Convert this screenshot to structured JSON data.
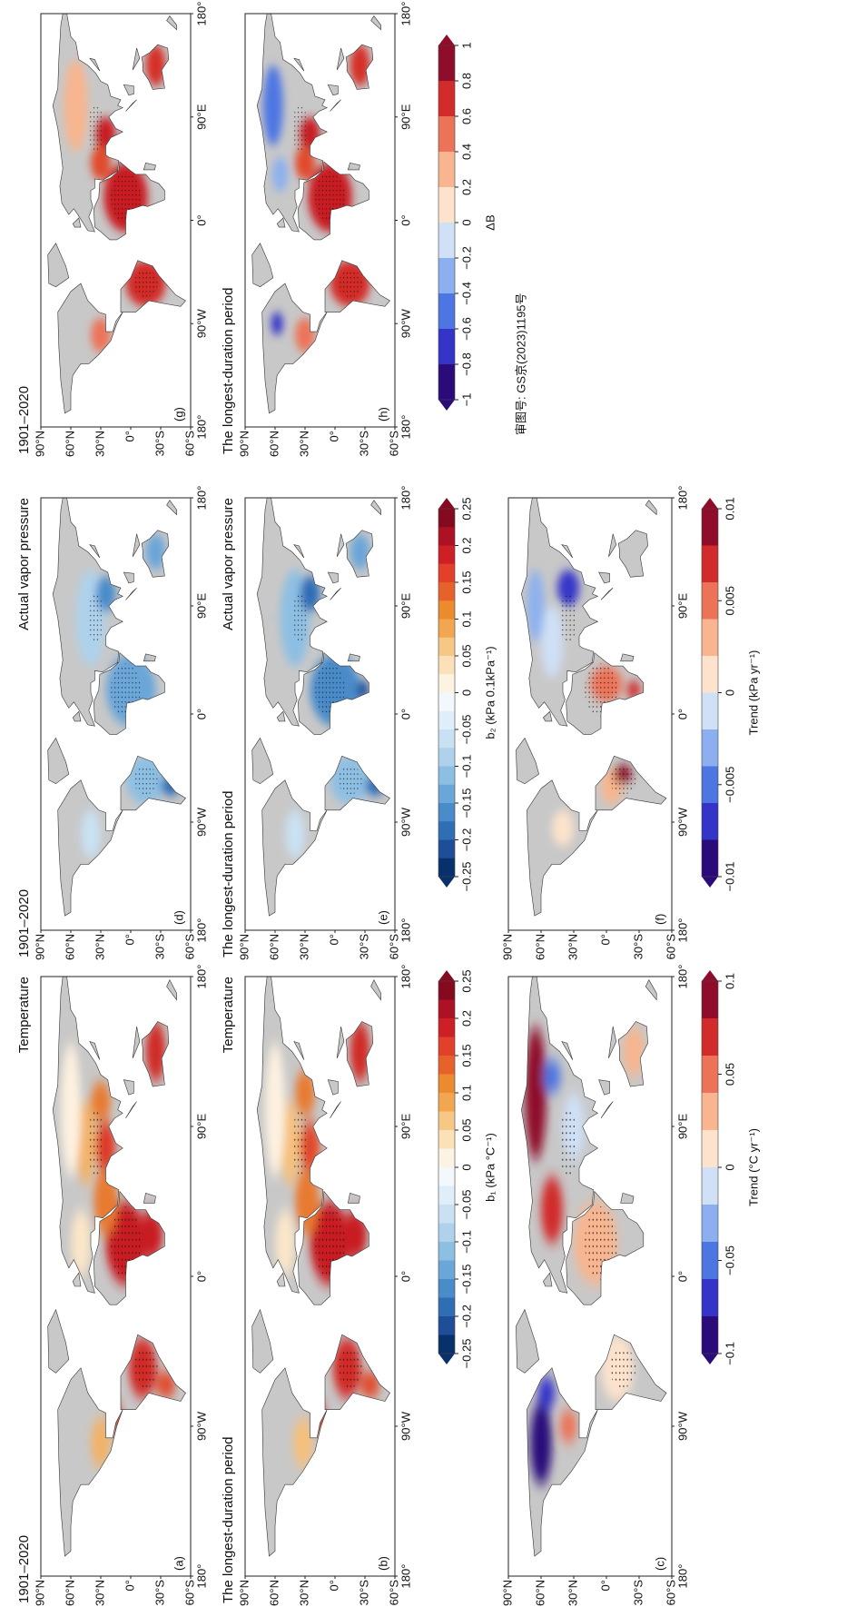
{
  "figure": {
    "panels": [
      {
        "letter": "(a)",
        "period": "1901–2020",
        "variable": "Temperature"
      },
      {
        "letter": "(b)",
        "period": "The longest-duration period",
        "variable": "Temperature"
      },
      {
        "letter": "(c)"
      },
      {
        "letter": "(d)",
        "period": "1901–2020",
        "variable": "Actual vapor pressure"
      },
      {
        "letter": "(e)",
        "period": "The longest-duration period",
        "variable": "Actual vapor pressure"
      },
      {
        "letter": "(f)"
      },
      {
        "letter": "(g)",
        "period": "1901–2020"
      },
      {
        "letter": "(h)",
        "period": "The longest-duration period"
      }
    ],
    "lat_labels": [
      "90°N",
      "60°N",
      "30°N",
      "0°",
      "30°S",
      "60°S"
    ],
    "lon_labels": [
      "180°",
      "90°W",
      "0°",
      "90°E",
      "180°"
    ],
    "colorbars": [
      {
        "label": "b₁ (kPa °C⁻¹)",
        "ticks": [
          {
            "value": -0.25,
            "label": "−0.25"
          },
          {
            "value": -0.2,
            "label": "−0.2"
          },
          {
            "value": -0.15,
            "label": "−0.15"
          },
          {
            "value": -0.1,
            "label": "−0.1"
          },
          {
            "value": -0.05,
            "label": "−0.05"
          },
          0,
          0.05,
          0.1,
          0.15,
          0.2,
          0.25
        ],
        "colors": [
          "#08306b",
          "#1f4e99",
          "#2f6db5",
          "#4a8bc9",
          "#6ba6d8",
          "#8dbfe3",
          "#aed2ec",
          "#c9e1f2",
          "#dfeef8",
          "#f2f8fc",
          "#fdf3e3",
          "#fbe0b8",
          "#f7c785",
          "#f2a650",
          "#ec8a2e",
          "#e7622a",
          "#e2402a",
          "#cf1f26",
          "#ad1224",
          "#860a1f"
        ]
      },
      {
        "label": "Trend (°C yr⁻¹)",
        "ticks": [
          {
            "value": -0.1,
            "label": "−0.1"
          },
          {
            "value": -0.05,
            "label": "−0.05"
          },
          0,
          0.05,
          0.1
        ],
        "colors": [
          "#2b0a7a",
          "#3434c9",
          "#4d76e3",
          "#8cb0ef",
          "#cfe0f7",
          "#fde3cc",
          "#f8b58f",
          "#ec7358",
          "#d22b2b",
          "#8f0d2a"
        ]
      },
      {
        "label": "b₂ (kPa 0.1kPa⁻¹)",
        "ticks": [
          {
            "value": -0.25,
            "label": "−0.25"
          },
          {
            "value": -0.2,
            "label": "−0.2"
          },
          {
            "value": -0.15,
            "label": "−0.15"
          },
          {
            "value": -0.1,
            "label": "−0.1"
          },
          {
            "value": -0.05,
            "label": "−0.05"
          },
          0,
          0.05,
          0.1,
          0.15,
          0.2,
          0.25
        ],
        "colors": [
          "#08306b",
          "#1f4e99",
          "#2f6db5",
          "#4a8bc9",
          "#6ba6d8",
          "#8dbfe3",
          "#aed2ec",
          "#c9e1f2",
          "#dfeef8",
          "#f2f8fc",
          "#fdf3e3",
          "#fbe0b8",
          "#f7c785",
          "#f2a650",
          "#ec8a2e",
          "#e7622a",
          "#e2402a",
          "#cf1f26",
          "#ad1224",
          "#860a1f"
        ]
      },
      {
        "label": "Trend (kPa yr⁻¹)",
        "ticks": [
          {
            "value": -0.01,
            "label": "−0.01"
          },
          {
            "value": -0.005,
            "label": "−0.005"
          },
          0,
          0.005,
          0.01
        ],
        "colors": [
          "#2b0a7a",
          "#3434c9",
          "#4d76e3",
          "#8cb0ef",
          "#cfe0f7",
          "#fde3cc",
          "#f8b58f",
          "#ec7358",
          "#d22b2b",
          "#8f0d2a"
        ]
      },
      {
        "label": "ΔB",
        "ticks": [
          {
            "value": -1,
            "label": "−1"
          },
          {
            "value": -0.8,
            "label": "−0.8"
          },
          {
            "value": -0.6,
            "label": "−0.6"
          },
          {
            "value": -0.4,
            "label": "−0.4"
          },
          {
            "value": -0.2,
            "label": "−0.2"
          },
          0,
          0.2,
          0.4,
          0.6,
          0.8,
          1
        ],
        "colors": [
          "#2b0a7a",
          "#3434c9",
          "#4d76e3",
          "#8cb0ef",
          "#cfe0f7",
          "#fde3cc",
          "#f8b58f",
          "#ec7358",
          "#d22b2b",
          "#8f0d2a"
        ]
      }
    ],
    "approval": "审图号: GS京(2023)1195号"
  }
}
